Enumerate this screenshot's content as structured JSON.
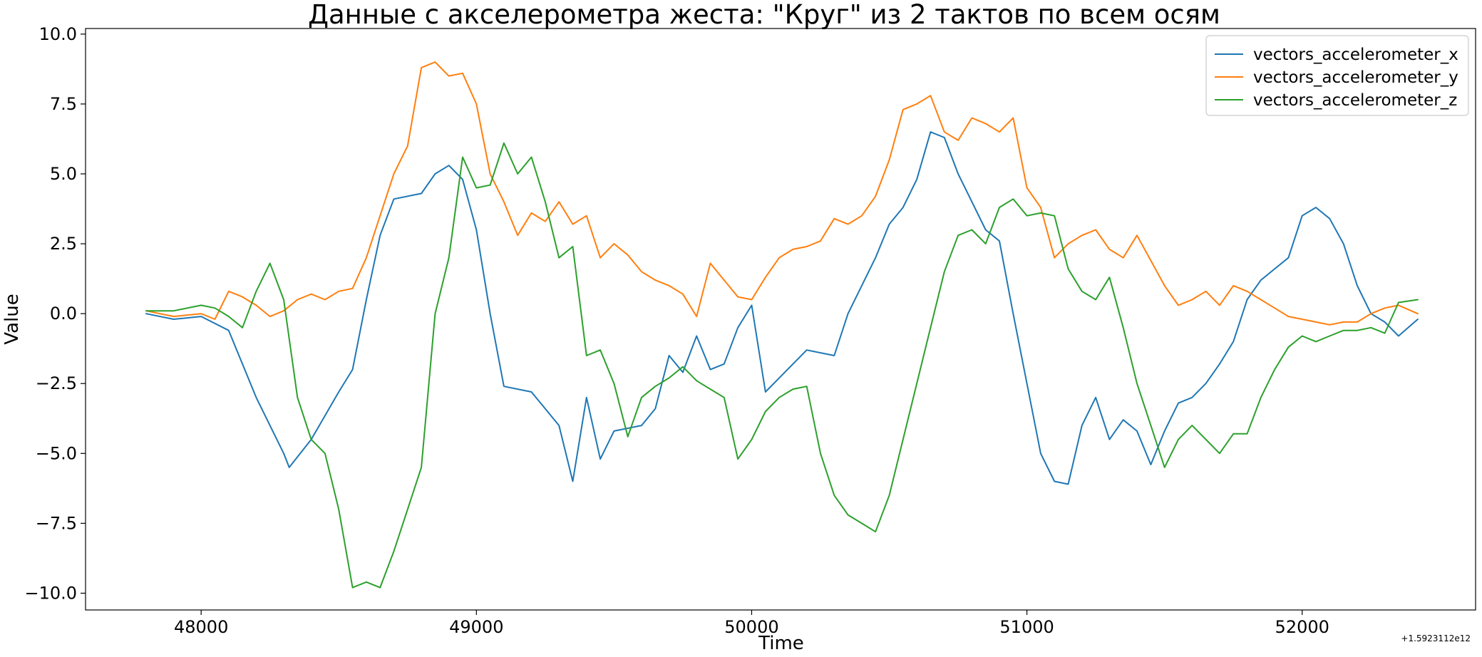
{
  "chart_data": {
    "type": "line",
    "title": "Данные с акселерометра жеста: \"Круг\" из 2 тактов по всем осям",
    "xlabel": "Time",
    "ylabel": "Value",
    "x_offset_label": "+1.5923112e12",
    "xlim": [
      47580,
      52630
    ],
    "ylim": [
      -10.6,
      10.2
    ],
    "xticks": [
      48000,
      49000,
      50000,
      51000,
      52000
    ],
    "xtick_labels": [
      "48000",
      "49000",
      "50000",
      "51000",
      "52000"
    ],
    "yticks": [
      10.0,
      7.5,
      5.0,
      2.5,
      0.0,
      -2.5,
      -5.0,
      -7.5,
      -10.0
    ],
    "ytick_labels": [
      "10.0",
      "7.5",
      "5.0",
      "2.5",
      "0.0",
      "−2.5",
      "−5.0",
      "−7.5",
      "−10.0"
    ],
    "grid": false,
    "legend_position": "top-right",
    "series": [
      {
        "name": "vectors_accelerometer_x",
        "color": "#1f77b4",
        "points": [
          [
            47800,
            0.0
          ],
          [
            47900,
            -0.2
          ],
          [
            48000,
            -0.1
          ],
          [
            48100,
            -0.6
          ],
          [
            48200,
            -3.0
          ],
          [
            48300,
            -5.0
          ],
          [
            48320,
            -5.5
          ],
          [
            48400,
            -4.5
          ],
          [
            48500,
            -2.8
          ],
          [
            48550,
            -2.0
          ],
          [
            48600,
            0.5
          ],
          [
            48650,
            2.8
          ],
          [
            48700,
            4.1
          ],
          [
            48800,
            4.3
          ],
          [
            48850,
            5.0
          ],
          [
            48900,
            5.3
          ],
          [
            48950,
            4.8
          ],
          [
            49000,
            3.0
          ],
          [
            49050,
            0.0
          ],
          [
            49100,
            -2.6
          ],
          [
            49200,
            -2.8
          ],
          [
            49300,
            -4.0
          ],
          [
            49350,
            -6.0
          ],
          [
            49400,
            -3.0
          ],
          [
            49450,
            -5.2
          ],
          [
            49500,
            -4.2
          ],
          [
            49600,
            -4.0
          ],
          [
            49650,
            -3.4
          ],
          [
            49700,
            -1.5
          ],
          [
            49750,
            -2.1
          ],
          [
            49800,
            -0.8
          ],
          [
            49850,
            -2.0
          ],
          [
            49900,
            -1.8
          ],
          [
            49950,
            -0.5
          ],
          [
            50000,
            0.3
          ],
          [
            50050,
            -2.8
          ],
          [
            50100,
            -2.3
          ],
          [
            50200,
            -1.3
          ],
          [
            50300,
            -1.5
          ],
          [
            50350,
            0.0
          ],
          [
            50400,
            1.0
          ],
          [
            50450,
            2.0
          ],
          [
            50500,
            3.2
          ],
          [
            50550,
            3.8
          ],
          [
            50600,
            4.8
          ],
          [
            50650,
            6.5
          ],
          [
            50700,
            6.3
          ],
          [
            50750,
            5.0
          ],
          [
            50800,
            4.0
          ],
          [
            50850,
            3.0
          ],
          [
            50900,
            2.6
          ],
          [
            50950,
            0.0
          ],
          [
            51000,
            -2.5
          ],
          [
            51050,
            -5.0
          ],
          [
            51100,
            -6.0
          ],
          [
            51150,
            -6.1
          ],
          [
            51200,
            -4.0
          ],
          [
            51250,
            -3.0
          ],
          [
            51300,
            -4.5
          ],
          [
            51350,
            -3.8
          ],
          [
            51400,
            -4.2
          ],
          [
            51450,
            -5.4
          ],
          [
            51500,
            -4.2
          ],
          [
            51550,
            -3.2
          ],
          [
            51600,
            -3.0
          ],
          [
            51650,
            -2.5
          ],
          [
            51700,
            -1.8
          ],
          [
            51750,
            -1.0
          ],
          [
            51800,
            0.5
          ],
          [
            51850,
            1.2
          ],
          [
            51900,
            1.6
          ],
          [
            51950,
            2.0
          ],
          [
            52000,
            3.5
          ],
          [
            52050,
            3.8
          ],
          [
            52100,
            3.4
          ],
          [
            52150,
            2.5
          ],
          [
            52200,
            1.0
          ],
          [
            52250,
            0.0
          ],
          [
            52300,
            -0.3
          ],
          [
            52350,
            -0.8
          ],
          [
            52420,
            -0.2
          ]
        ]
      },
      {
        "name": "vectors_accelerometer_y",
        "color": "#ff7f0e",
        "points": [
          [
            47800,
            0.1
          ],
          [
            47900,
            -0.1
          ],
          [
            48000,
            0.0
          ],
          [
            48050,
            -0.2
          ],
          [
            48100,
            0.8
          ],
          [
            48150,
            0.6
          ],
          [
            48200,
            0.3
          ],
          [
            48250,
            -0.1
          ],
          [
            48300,
            0.1
          ],
          [
            48350,
            0.5
          ],
          [
            48400,
            0.7
          ],
          [
            48450,
            0.5
          ],
          [
            48500,
            0.8
          ],
          [
            48550,
            0.9
          ],
          [
            48600,
            2.0
          ],
          [
            48650,
            3.5
          ],
          [
            48700,
            5.0
          ],
          [
            48750,
            6.0
          ],
          [
            48800,
            8.8
          ],
          [
            48850,
            9.0
          ],
          [
            48900,
            8.5
          ],
          [
            48950,
            8.6
          ],
          [
            49000,
            7.5
          ],
          [
            49050,
            5.0
          ],
          [
            49100,
            4.0
          ],
          [
            49150,
            2.8
          ],
          [
            49200,
            3.6
          ],
          [
            49250,
            3.3
          ],
          [
            49300,
            4.0
          ],
          [
            49350,
            3.2
          ],
          [
            49400,
            3.5
          ],
          [
            49450,
            2.0
          ],
          [
            49500,
            2.5
          ],
          [
            49550,
            2.1
          ],
          [
            49600,
            1.5
          ],
          [
            49650,
            1.2
          ],
          [
            49700,
            1.0
          ],
          [
            49750,
            0.7
          ],
          [
            49800,
            -0.1
          ],
          [
            49850,
            1.8
          ],
          [
            49900,
            1.2
          ],
          [
            49950,
            0.6
          ],
          [
            50000,
            0.5
          ],
          [
            50050,
            1.3
          ],
          [
            50100,
            2.0
          ],
          [
            50150,
            2.3
          ],
          [
            50200,
            2.4
          ],
          [
            50250,
            2.6
          ],
          [
            50300,
            3.4
          ],
          [
            50350,
            3.2
          ],
          [
            50400,
            3.5
          ],
          [
            50450,
            4.2
          ],
          [
            50500,
            5.5
          ],
          [
            50550,
            7.3
          ],
          [
            50600,
            7.5
          ],
          [
            50650,
            7.8
          ],
          [
            50700,
            6.5
          ],
          [
            50750,
            6.2
          ],
          [
            50800,
            7.0
          ],
          [
            50850,
            6.8
          ],
          [
            50900,
            6.5
          ],
          [
            50950,
            7.0
          ],
          [
            51000,
            4.5
          ],
          [
            51050,
            3.8
          ],
          [
            51100,
            2.0
          ],
          [
            51150,
            2.5
          ],
          [
            51200,
            2.8
          ],
          [
            51250,
            3.0
          ],
          [
            51300,
            2.3
          ],
          [
            51350,
            2.0
          ],
          [
            51400,
            2.8
          ],
          [
            51450,
            1.9
          ],
          [
            51500,
            1.0
          ],
          [
            51550,
            0.3
          ],
          [
            51600,
            0.5
          ],
          [
            51650,
            0.8
          ],
          [
            51700,
            0.3
          ],
          [
            51750,
            1.0
          ],
          [
            51800,
            0.8
          ],
          [
            51850,
            0.5
          ],
          [
            51900,
            0.2
          ],
          [
            51950,
            -0.1
          ],
          [
            52000,
            -0.2
          ],
          [
            52050,
            -0.3
          ],
          [
            52100,
            -0.4
          ],
          [
            52150,
            -0.3
          ],
          [
            52200,
            -0.3
          ],
          [
            52250,
            0.0
          ],
          [
            52300,
            0.2
          ],
          [
            52350,
            0.3
          ],
          [
            52420,
            0.0
          ]
        ]
      },
      {
        "name": "vectors_accelerometer_z",
        "color": "#2ca02c",
        "points": [
          [
            47800,
            0.1
          ],
          [
            47900,
            0.1
          ],
          [
            48000,
            0.3
          ],
          [
            48050,
            0.2
          ],
          [
            48100,
            -0.1
          ],
          [
            48150,
            -0.5
          ],
          [
            48200,
            0.8
          ],
          [
            48250,
            1.8
          ],
          [
            48300,
            0.5
          ],
          [
            48350,
            -3.0
          ],
          [
            48400,
            -4.5
          ],
          [
            48450,
            -5.0
          ],
          [
            48500,
            -7.0
          ],
          [
            48550,
            -9.8
          ],
          [
            48600,
            -9.6
          ],
          [
            48650,
            -9.8
          ],
          [
            48700,
            -8.5
          ],
          [
            48750,
            -7.0
          ],
          [
            48800,
            -5.5
          ],
          [
            48850,
            0.0
          ],
          [
            48900,
            2.0
          ],
          [
            48950,
            5.6
          ],
          [
            49000,
            4.5
          ],
          [
            49050,
            4.6
          ],
          [
            49100,
            6.1
          ],
          [
            49150,
            5.0
          ],
          [
            49200,
            5.6
          ],
          [
            49250,
            4.0
          ],
          [
            49300,
            2.0
          ],
          [
            49350,
            2.4
          ],
          [
            49400,
            -1.5
          ],
          [
            49450,
            -1.3
          ],
          [
            49500,
            -2.5
          ],
          [
            49550,
            -4.4
          ],
          [
            49600,
            -3.0
          ],
          [
            49650,
            -2.6
          ],
          [
            49700,
            -2.3
          ],
          [
            49750,
            -1.9
          ],
          [
            49800,
            -2.4
          ],
          [
            49850,
            -2.7
          ],
          [
            49900,
            -3.0
          ],
          [
            49950,
            -5.2
          ],
          [
            50000,
            -4.5
          ],
          [
            50050,
            -3.5
          ],
          [
            50100,
            -3.0
          ],
          [
            50150,
            -2.7
          ],
          [
            50200,
            -2.6
          ],
          [
            50250,
            -5.0
          ],
          [
            50300,
            -6.5
          ],
          [
            50350,
            -7.2
          ],
          [
            50400,
            -7.5
          ],
          [
            50450,
            -7.8
          ],
          [
            50500,
            -6.5
          ],
          [
            50550,
            -4.5
          ],
          [
            50600,
            -2.5
          ],
          [
            50650,
            -0.5
          ],
          [
            50700,
            1.5
          ],
          [
            50750,
            2.8
          ],
          [
            50800,
            3.0
          ],
          [
            50850,
            2.5
          ],
          [
            50900,
            3.8
          ],
          [
            50950,
            4.1
          ],
          [
            51000,
            3.5
          ],
          [
            51050,
            3.6
          ],
          [
            51100,
            3.5
          ],
          [
            51150,
            1.6
          ],
          [
            51200,
            0.8
          ],
          [
            51250,
            0.5
          ],
          [
            51300,
            1.3
          ],
          [
            51350,
            -0.5
          ],
          [
            51400,
            -2.5
          ],
          [
            51450,
            -4.0
          ],
          [
            51500,
            -5.5
          ],
          [
            51550,
            -4.5
          ],
          [
            51600,
            -4.0
          ],
          [
            51650,
            -4.5
          ],
          [
            51700,
            -5.0
          ],
          [
            51750,
            -4.3
          ],
          [
            51800,
            -4.3
          ],
          [
            51850,
            -3.0
          ],
          [
            51900,
            -2.0
          ],
          [
            51950,
            -1.2
          ],
          [
            52000,
            -0.8
          ],
          [
            52050,
            -1.0
          ],
          [
            52100,
            -0.8
          ],
          [
            52150,
            -0.6
          ],
          [
            52200,
            -0.6
          ],
          [
            52250,
            -0.5
          ],
          [
            52300,
            -0.7
          ],
          [
            52350,
            0.4
          ],
          [
            52420,
            0.5
          ]
        ]
      }
    ]
  }
}
